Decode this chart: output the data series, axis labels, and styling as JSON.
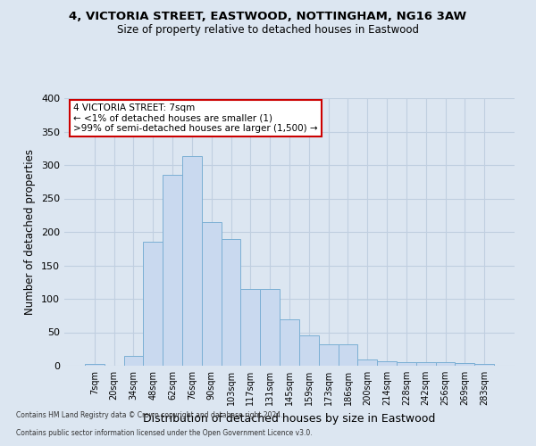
{
  "title1": "4, VICTORIA STREET, EASTWOOD, NOTTINGHAM, NG16 3AW",
  "title2": "Size of property relative to detached houses in Eastwood",
  "xlabel": "Distribution of detached houses by size in Eastwood",
  "ylabel": "Number of detached properties",
  "categories": [
    "7sqm",
    "20sqm",
    "34sqm",
    "48sqm",
    "62sqm",
    "76sqm",
    "90sqm",
    "103sqm",
    "117sqm",
    "131sqm",
    "145sqm",
    "159sqm",
    "173sqm",
    "186sqm",
    "200sqm",
    "214sqm",
    "228sqm",
    "242sqm",
    "256sqm",
    "269sqm",
    "283sqm"
  ],
  "values": [
    3,
    0,
    15,
    185,
    285,
    313,
    215,
    190,
    115,
    115,
    70,
    45,
    32,
    32,
    10,
    7,
    5,
    5,
    5,
    4,
    3
  ],
  "bar_color": "#c9d9ef",
  "bar_edge_color": "#7bafd4",
  "annotation_line1": "4 VICTORIA STREET: 7sqm",
  "annotation_line2": "← <1% of detached houses are smaller (1)",
  "annotation_line3": ">99% of semi-detached houses are larger (1,500) →",
  "annotation_box_color": "#ffffff",
  "annotation_box_edge_color": "#cc0000",
  "ylim": [
    0,
    400
  ],
  "yticks": [
    0,
    50,
    100,
    150,
    200,
    250,
    300,
    350,
    400
  ],
  "background_color": "#dce6f1",
  "plot_bg_color": "#dce6f1",
  "grid_color": "#c0cfe0",
  "footer1": "Contains HM Land Registry data © Crown copyright and database right 2024.",
  "footer2": "Contains public sector information licensed under the Open Government Licence v3.0."
}
